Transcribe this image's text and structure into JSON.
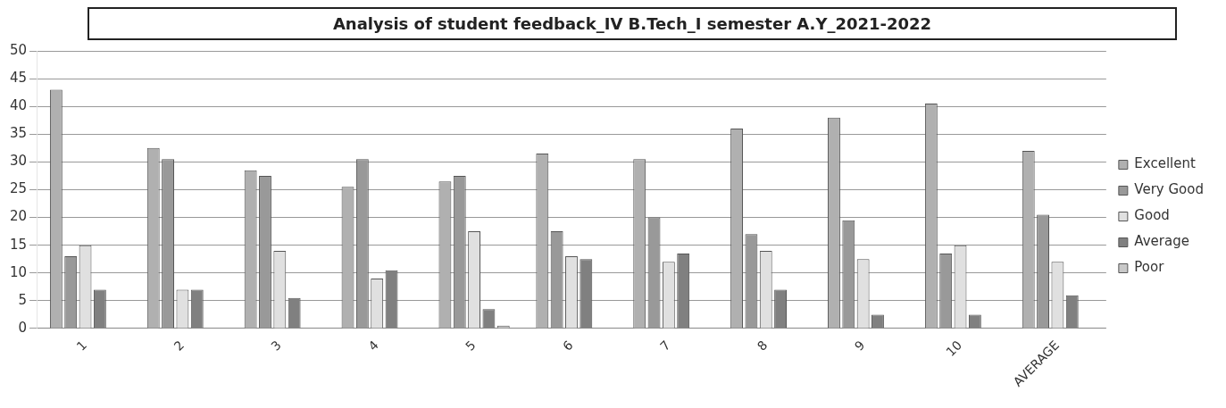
{
  "chart_data": {
    "type": "bar",
    "title": "Analysis of student feedback_IV B.Tech_I semester A.Y_2021-2022",
    "categories": [
      "1",
      "2",
      "3",
      "4",
      "5",
      "6",
      "7",
      "8",
      "9",
      "10",
      "AVERAGE"
    ],
    "series": [
      {
        "name": "Excellent",
        "color": "#b0b0b0",
        "values": [
          43,
          32.5,
          28.5,
          25.5,
          26.5,
          31.5,
          30.5,
          36,
          38,
          40.5,
          32
        ]
      },
      {
        "name": "Very Good",
        "color": "#999999",
        "values": [
          13,
          30.5,
          27.5,
          30.5,
          27.5,
          17.5,
          20,
          17,
          19.5,
          13.5,
          20.5
        ]
      },
      {
        "name": "Good",
        "color": "#e0e0e0",
        "values": [
          15,
          7,
          14,
          9,
          17.5,
          13,
          12,
          14,
          12.5,
          15,
          12
        ]
      },
      {
        "name": "Average",
        "color": "#808080",
        "values": [
          7,
          7,
          5.5,
          10.5,
          3.5,
          12.5,
          13.5,
          7,
          2.5,
          2.5,
          6
        ]
      },
      {
        "name": "Poor",
        "color": "#c8c8c8",
        "values": [
          0,
          0,
          0,
          0,
          0.5,
          0,
          0,
          0,
          0,
          0,
          0
        ]
      }
    ],
    "ylim": [
      0,
      50
    ],
    "yticks": [
      0,
      5,
      10,
      15,
      20,
      25,
      30,
      35,
      40,
      45,
      50
    ],
    "grid": "y",
    "legend": "right"
  }
}
